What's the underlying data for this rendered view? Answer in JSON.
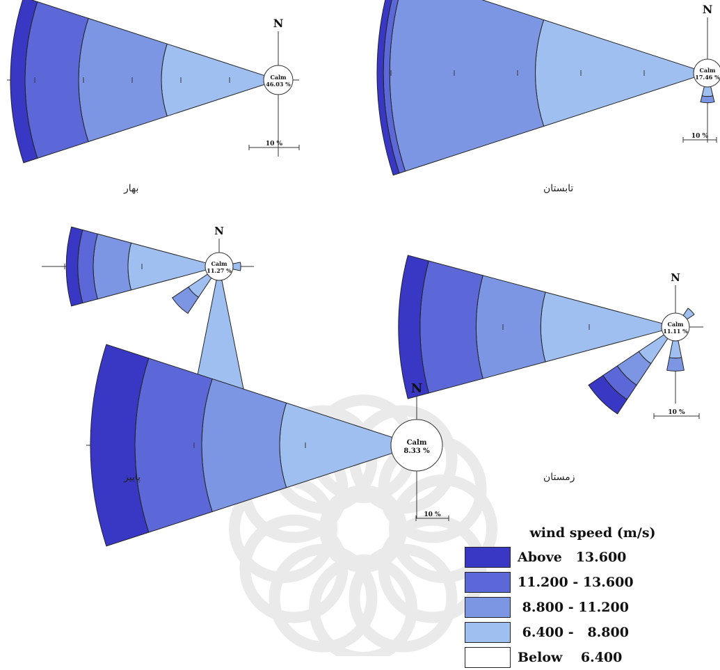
{
  "captions": [
    "بهار",
    "تابستان",
    "پاییز",
    "زمستان"
  ],
  "colors": {
    "above_13_6": "#3838c4",
    "b_11_2_13_6": "#5c68d8",
    "b_8_8_11_2": "#7c96e4",
    "b_6_4_8_8": "#9fbff0",
    "below_6_4": "#ffffff",
    "outline": "#222222"
  },
  "legend": {
    "title": "wind speed (m/s)",
    "entries": [
      {
        "label": "Above   13.600",
        "color": "#3838c4"
      },
      {
        "label": "11.200 - 13.600",
        "color": "#5c68d8"
      },
      {
        "label": " 8.800 - 11.200",
        "color": "#7c96e4"
      },
      {
        "label": " 6.400 -   8.800",
        "color": "#9fbff0"
      },
      {
        "label": "Below    6.400",
        "color": "#ffffff"
      }
    ]
  },
  "chart_data": [
    {
      "type": "wind_rose",
      "north_label": "N",
      "calm_label": "Calm",
      "calm_value": "46.03 %",
      "scale_label": "10 %",
      "ring_step_percent": 10,
      "petals": [
        {
          "direction_deg": 270,
          "bins_percent": [
            21,
            17,
            11,
            3
          ]
        }
      ]
    },
    {
      "type": "wind_rose",
      "north_label": "N",
      "calm_label": "Calm",
      "calm_value": "17.46 %",
      "scale_label": "10 %",
      "ring_step_percent": 10,
      "petals": [
        {
          "direction_deg": 270,
          "bins_percent": [
            25,
            23,
            1,
            1
          ]
        },
        {
          "direction_deg": 180,
          "bins_percent": [
            1.5,
            1,
            0,
            0
          ]
        }
      ]
    },
    {
      "type": "wind_rose",
      "north_label": "N",
      "calm_label": "Calm",
      "calm_value": "11.27 %",
      "scale_label": "10 %",
      "ring_step_percent": 10,
      "petals": [
        {
          "direction_deg": 270,
          "bins_percent": [
            10,
            4.5,
            2,
            1.5
          ]
        },
        {
          "direction_deg": 225,
          "bins_percent": [
            3,
            2.5,
            0,
            0
          ]
        },
        {
          "direction_deg": 180,
          "bins_percent": [
            17.5,
            1,
            0.5,
            0.5
          ]
        },
        {
          "direction_deg": 90,
          "bins_percent": [
            1,
            0,
            0,
            0
          ]
        }
      ]
    },
    {
      "type": "wind_rose",
      "north_label": "N",
      "calm_label": "Calm",
      "calm_value": "11.11 %",
      "scale_label": "10 %",
      "ring_step_percent": 10,
      "petals": [
        {
          "direction_deg": 270,
          "bins_percent": [
            14,
            7.5,
            6.5,
            2.5
          ]
        },
        {
          "direction_deg": 225,
          "bins_percent": [
            3.5,
            3,
            2,
            2
          ]
        },
        {
          "direction_deg": 180,
          "bins_percent": [
            2,
            1.5,
            0,
            0
          ]
        },
        {
          "direction_deg": 45,
          "bins_percent": [
            1,
            0,
            0,
            0
          ]
        }
      ]
    },
    {
      "type": "wind_rose",
      "north_label": "N",
      "calm_label": "Calm",
      "calm_value": "8.33 %",
      "scale_label": "10 %",
      "ring_step_percent": 10,
      "petals": [
        {
          "direction_deg": 270,
          "bins_percent": [
            10,
            7,
            6,
            4
          ]
        }
      ]
    }
  ]
}
